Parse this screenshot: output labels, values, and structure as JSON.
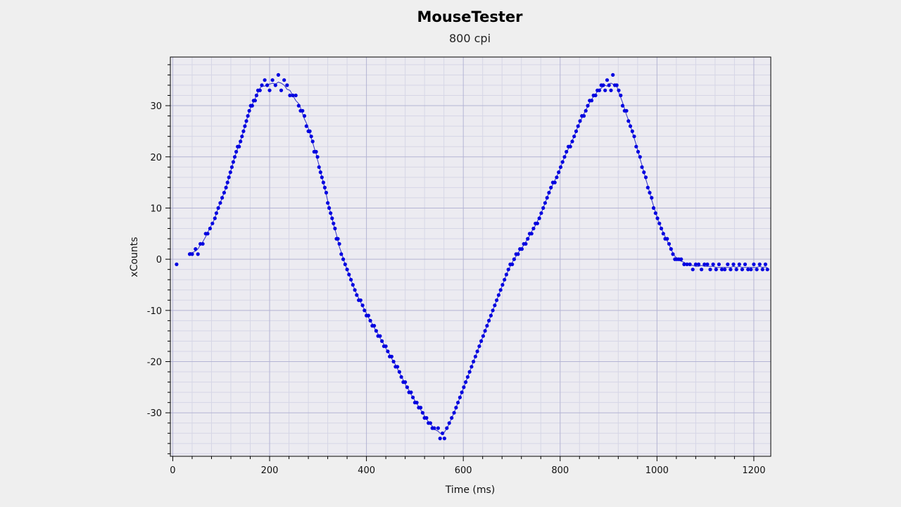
{
  "chart_data": {
    "type": "scatter",
    "title": "MouseTester",
    "subtitle": "800 cpi",
    "xlabel": "Time (ms)",
    "ylabel": "xCounts",
    "xlim": [
      -5,
      1235
    ],
    "ylim": [
      -38.5,
      39.5
    ],
    "xticks": [
      0,
      200,
      400,
      600,
      800,
      1000,
      1200
    ],
    "yticks": [
      -30,
      -20,
      -10,
      0,
      10,
      20,
      30
    ],
    "grid": true,
    "legend": "none",
    "point_color": "#0000e0",
    "line_color": "#3030c8",
    "series": [
      {
        "points": [
          [
            8,
            -1
          ],
          [
            35,
            1
          ],
          [
            40,
            1
          ],
          [
            47,
            2
          ],
          [
            52,
            1
          ],
          [
            57,
            3
          ],
          [
            62,
            3
          ],
          [
            68,
            5
          ],
          [
            72,
            5
          ],
          [
            77,
            6
          ],
          [
            82,
            7
          ],
          [
            87,
            8
          ],
          [
            90,
            9
          ],
          [
            94,
            10
          ],
          [
            98,
            11
          ],
          [
            102,
            12
          ],
          [
            106,
            13
          ],
          [
            110,
            14
          ],
          [
            113,
            15
          ],
          [
            116,
            16
          ],
          [
            119,
            17
          ],
          [
            122,
            18
          ],
          [
            125,
            19
          ],
          [
            128,
            20
          ],
          [
            131,
            21
          ],
          [
            134,
            22
          ],
          [
            137,
            22
          ],
          [
            140,
            23
          ],
          [
            143,
            24
          ],
          [
            146,
            25
          ],
          [
            149,
            26
          ],
          [
            152,
            27
          ],
          [
            155,
            28
          ],
          [
            158,
            29
          ],
          [
            161,
            30
          ],
          [
            164,
            30
          ],
          [
            167,
            31
          ],
          [
            170,
            31
          ],
          [
            173,
            32
          ],
          [
            176,
            33
          ],
          [
            180,
            33
          ],
          [
            184,
            34
          ],
          [
            190,
            35
          ],
          [
            195,
            34
          ],
          [
            200,
            33
          ],
          [
            206,
            35
          ],
          [
            212,
            34
          ],
          [
            218,
            36
          ],
          [
            224,
            33
          ],
          [
            230,
            35
          ],
          [
            236,
            34
          ],
          [
            242,
            32
          ],
          [
            248,
            32
          ],
          [
            254,
            32
          ],
          [
            260,
            30
          ],
          [
            264,
            29
          ],
          [
            268,
            29
          ],
          [
            272,
            28
          ],
          [
            276,
            26
          ],
          [
            280,
            25
          ],
          [
            283,
            25
          ],
          [
            286,
            24
          ],
          [
            289,
            23
          ],
          [
            292,
            21
          ],
          [
            296,
            21
          ],
          [
            299,
            20
          ],
          [
            302,
            18
          ],
          [
            305,
            17
          ],
          [
            308,
            16
          ],
          [
            311,
            15
          ],
          [
            314,
            14
          ],
          [
            317,
            13
          ],
          [
            320,
            11
          ],
          [
            323,
            10
          ],
          [
            326,
            9
          ],
          [
            329,
            8
          ],
          [
            332,
            7
          ],
          [
            335,
            6
          ],
          [
            338,
            4
          ],
          [
            341,
            4
          ],
          [
            344,
            3
          ],
          [
            348,
            1
          ],
          [
            352,
            0
          ],
          [
            356,
            -1
          ],
          [
            360,
            -2
          ],
          [
            364,
            -3
          ],
          [
            368,
            -4
          ],
          [
            372,
            -5
          ],
          [
            376,
            -6
          ],
          [
            380,
            -7
          ],
          [
            384,
            -8
          ],
          [
            388,
            -8
          ],
          [
            392,
            -9
          ],
          [
            396,
            -10
          ],
          [
            400,
            -11
          ],
          [
            404,
            -11
          ],
          [
            408,
            -12
          ],
          [
            412,
            -13
          ],
          [
            416,
            -13
          ],
          [
            420,
            -14
          ],
          [
            424,
            -15
          ],
          [
            428,
            -15
          ],
          [
            432,
            -16
          ],
          [
            436,
            -17
          ],
          [
            440,
            -17
          ],
          [
            444,
            -18
          ],
          [
            448,
            -19
          ],
          [
            452,
            -19
          ],
          [
            456,
            -20
          ],
          [
            460,
            -21
          ],
          [
            464,
            -21
          ],
          [
            468,
            -22
          ],
          [
            472,
            -23
          ],
          [
            476,
            -24
          ],
          [
            480,
            -24
          ],
          [
            484,
            -25
          ],
          [
            488,
            -26
          ],
          [
            492,
            -26
          ],
          [
            496,
            -27
          ],
          [
            500,
            -28
          ],
          [
            504,
            -28
          ],
          [
            508,
            -29
          ],
          [
            512,
            -29
          ],
          [
            516,
            -30
          ],
          [
            520,
            -31
          ],
          [
            524,
            -31
          ],
          [
            528,
            -32
          ],
          [
            532,
            -32
          ],
          [
            536,
            -33
          ],
          [
            540,
            -33
          ],
          [
            548,
            -33
          ],
          [
            552,
            -35
          ],
          [
            557,
            -34
          ],
          [
            561,
            -35
          ],
          [
            566,
            -33
          ],
          [
            571,
            -32
          ],
          [
            576,
            -31
          ],
          [
            581,
            -30
          ],
          [
            585,
            -29
          ],
          [
            589,
            -28
          ],
          [
            593,
            -27
          ],
          [
            597,
            -26
          ],
          [
            601,
            -25
          ],
          [
            605,
            -24
          ],
          [
            609,
            -23
          ],
          [
            613,
            -22
          ],
          [
            617,
            -21
          ],
          [
            621,
            -20
          ],
          [
            625,
            -19
          ],
          [
            629,
            -18
          ],
          [
            633,
            -17
          ],
          [
            637,
            -16
          ],
          [
            641,
            -15
          ],
          [
            645,
            -14
          ],
          [
            649,
            -13
          ],
          [
            653,
            -12
          ],
          [
            657,
            -11
          ],
          [
            661,
            -10
          ],
          [
            665,
            -9
          ],
          [
            669,
            -8
          ],
          [
            673,
            -7
          ],
          [
            677,
            -6
          ],
          [
            681,
            -5
          ],
          [
            685,
            -4
          ],
          [
            689,
            -3
          ],
          [
            693,
            -2
          ],
          [
            697,
            -1
          ],
          [
            701,
            -1
          ],
          [
            705,
            0
          ],
          [
            709,
            1
          ],
          [
            713,
            1
          ],
          [
            717,
            2
          ],
          [
            721,
            2
          ],
          [
            725,
            3
          ],
          [
            729,
            3
          ],
          [
            733,
            4
          ],
          [
            737,
            5
          ],
          [
            741,
            5
          ],
          [
            745,
            6
          ],
          [
            749,
            7
          ],
          [
            753,
            7
          ],
          [
            757,
            8
          ],
          [
            761,
            9
          ],
          [
            765,
            10
          ],
          [
            769,
            11
          ],
          [
            773,
            12
          ],
          [
            777,
            13
          ],
          [
            781,
            14
          ],
          [
            785,
            15
          ],
          [
            789,
            15
          ],
          [
            793,
            16
          ],
          [
            797,
            17
          ],
          [
            801,
            18
          ],
          [
            805,
            19
          ],
          [
            809,
            20
          ],
          [
            813,
            21
          ],
          [
            817,
            22
          ],
          [
            821,
            22
          ],
          [
            825,
            23
          ],
          [
            829,
            24
          ],
          [
            833,
            25
          ],
          [
            837,
            26
          ],
          [
            841,
            27
          ],
          [
            845,
            28
          ],
          [
            849,
            28
          ],
          [
            853,
            29
          ],
          [
            857,
            30
          ],
          [
            861,
            31
          ],
          [
            865,
            31
          ],
          [
            869,
            32
          ],
          [
            873,
            32
          ],
          [
            877,
            33
          ],
          [
            881,
            33
          ],
          [
            885,
            34
          ],
          [
            889,
            34
          ],
          [
            893,
            33
          ],
          [
            897,
            35
          ],
          [
            901,
            34
          ],
          [
            905,
            33
          ],
          [
            909,
            36
          ],
          [
            913,
            34
          ],
          [
            917,
            34
          ],
          [
            921,
            33
          ],
          [
            925,
            32
          ],
          [
            929,
            30
          ],
          [
            933,
            29
          ],
          [
            937,
            29
          ],
          [
            941,
            27
          ],
          [
            945,
            26
          ],
          [
            949,
            25
          ],
          [
            953,
            24
          ],
          [
            957,
            22
          ],
          [
            961,
            21
          ],
          [
            965,
            20
          ],
          [
            969,
            18
          ],
          [
            973,
            17
          ],
          [
            977,
            16
          ],
          [
            981,
            14
          ],
          [
            985,
            13
          ],
          [
            989,
            12
          ],
          [
            993,
            10
          ],
          [
            997,
            9
          ],
          [
            1001,
            8
          ],
          [
            1005,
            7
          ],
          [
            1009,
            6
          ],
          [
            1013,
            5
          ],
          [
            1017,
            4
          ],
          [
            1021,
            4
          ],
          [
            1025,
            3
          ],
          [
            1029,
            2
          ],
          [
            1033,
            1
          ],
          [
            1037,
            0
          ],
          [
            1041,
            0
          ],
          [
            1045,
            0
          ],
          [
            1050,
            0
          ],
          [
            1056,
            -1
          ],
          [
            1062,
            -1
          ],
          [
            1068,
            -1
          ],
          [
            1074,
            -2
          ],
          [
            1080,
            -1
          ],
          [
            1086,
            -1
          ],
          [
            1092,
            -2
          ],
          [
            1098,
            -1
          ],
          [
            1104,
            -1
          ],
          [
            1110,
            -2
          ],
          [
            1116,
            -1
          ],
          [
            1122,
            -2
          ],
          [
            1128,
            -1
          ],
          [
            1134,
            -2
          ],
          [
            1140,
            -2
          ],
          [
            1146,
            -1
          ],
          [
            1152,
            -2
          ],
          [
            1158,
            -1
          ],
          [
            1164,
            -2
          ],
          [
            1170,
            -1
          ],
          [
            1176,
            -2
          ],
          [
            1182,
            -1
          ],
          [
            1188,
            -2
          ],
          [
            1194,
            -2
          ],
          [
            1200,
            -1
          ],
          [
            1206,
            -2
          ],
          [
            1212,
            -1
          ],
          [
            1218,
            -2
          ],
          [
            1224,
            -1
          ],
          [
            1228,
            -2
          ]
        ]
      }
    ]
  }
}
